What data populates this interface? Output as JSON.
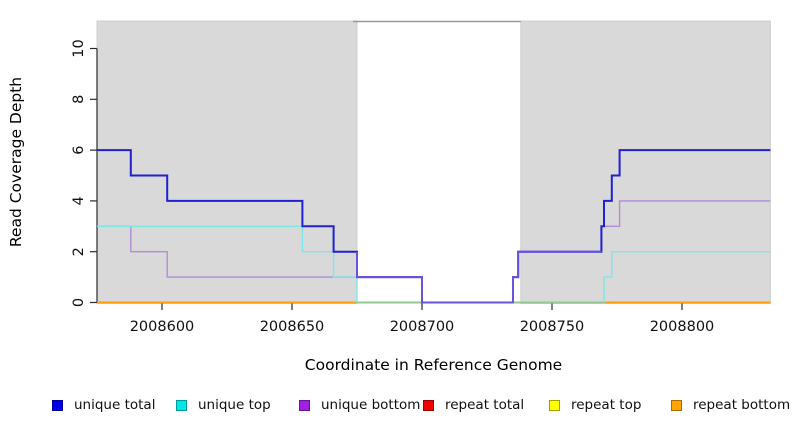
{
  "x_axis": {
    "label": "Coordinate in Reference Genome",
    "tick_values": [
      2008600,
      2008650,
      2008700,
      2008750,
      2008800
    ],
    "tick_labels": [
      "2008600",
      "2008650",
      "2008700",
      "2008750",
      "2008800"
    ]
  },
  "y_axis": {
    "label": "Read Coverage Depth",
    "tick_values": [
      0,
      2,
      4,
      6,
      8,
      10
    ],
    "tick_labels": [
      "0",
      "2",
      "4",
      "6",
      "8",
      "10"
    ]
  },
  "chart_data": {
    "type": "line",
    "style": "step",
    "title": "",
    "xlabel": "Coordinate in Reference Genome",
    "ylabel": "Read Coverage Depth",
    "xlim": [
      2008575,
      2008834
    ],
    "ylim": [
      0,
      11
    ],
    "grid": false,
    "legend_position": "bottom",
    "shaded_regions": {
      "fill": "#d9d9d9",
      "border": "#c6c6c6",
      "intervals": [
        [
          2008575,
          2008675
        ],
        [
          2008738,
          2008834
        ]
      ],
      "gap": [
        2008675,
        2008738
      ],
      "gap_top_line_color": "#9a9a9a"
    },
    "series": [
      {
        "name": "unique total",
        "color": "#2020d0",
        "line_width": 2,
        "steps": [
          [
            2008575,
            6
          ],
          [
            2008588,
            5
          ],
          [
            2008602,
            4
          ],
          [
            2008654,
            3
          ],
          [
            2008666,
            2
          ],
          [
            2008675,
            1
          ],
          [
            2008700,
            0
          ],
          [
            2008735,
            1
          ],
          [
            2008737,
            2
          ],
          [
            2008769,
            3
          ],
          [
            2008770,
            4
          ],
          [
            2008773,
            5
          ],
          [
            2008776,
            6
          ],
          [
            2008834,
            6
          ]
        ]
      },
      {
        "name": "unique top",
        "color": "#7de8e8",
        "line_width": 1.4,
        "steps": [
          [
            2008575,
            3
          ],
          [
            2008654,
            2
          ],
          [
            2008666,
            1
          ],
          [
            2008675,
            0
          ],
          [
            2008770,
            1
          ],
          [
            2008773,
            2
          ],
          [
            2008834,
            2
          ]
        ]
      },
      {
        "name": "unique bottom",
        "color": "#b28cd6",
        "line_width": 1.4,
        "steps": [
          [
            2008575,
            3
          ],
          [
            2008588,
            2
          ],
          [
            2008602,
            1
          ],
          [
            2008700,
            0
          ],
          [
            2008735,
            1
          ],
          [
            2008737,
            2
          ],
          [
            2008769,
            3
          ],
          [
            2008776,
            4
          ],
          [
            2008834,
            4
          ]
        ]
      },
      {
        "name": "repeat total",
        "color": "#e01010",
        "line_width": 1.4,
        "steps": [
          [
            2008575,
            0
          ],
          [
            2008834,
            0
          ]
        ]
      },
      {
        "name": "repeat top",
        "color": "#f5f500",
        "line_width": 1.4,
        "steps": [
          [
            2008575,
            0
          ],
          [
            2008834,
            0
          ]
        ]
      },
      {
        "name": "repeat bottom",
        "color": "#ff9d0a",
        "line_width": 2,
        "steps": [
          [
            2008575,
            0
          ],
          [
            2008834,
            0
          ]
        ]
      }
    ],
    "overlap_blends": [
      {
        "name": "unique-top-over-repeat-bottom-zero",
        "color": "#8fc98f",
        "line_width": 1.7,
        "steps": [
          [
            2008675,
            0
          ],
          [
            2008770,
            0
          ]
        ]
      },
      {
        "name": "unique-total-over-unique-bottom",
        "color": "#6a52dc",
        "line_width": 2,
        "steps": [
          [
            2008675,
            2
          ],
          [
            2008675,
            1
          ],
          [
            2008700,
            0
          ],
          [
            2008735,
            1
          ],
          [
            2008737,
            2
          ],
          [
            2008769,
            2
          ]
        ]
      }
    ]
  },
  "legend": {
    "items": [
      {
        "label": "unique total",
        "fill": "#0000ee",
        "border": "#00009a"
      },
      {
        "label": "unique top",
        "fill": "#00e6e6",
        "border": "#009a9a"
      },
      {
        "label": "unique bottom",
        "fill": "#a020e0",
        "border": "#6a12a0"
      },
      {
        "label": "repeat total",
        "fill": "#ee0000",
        "border": "#9a0000"
      },
      {
        "label": "repeat top",
        "fill": "#ffff00",
        "border": "#a0a000"
      },
      {
        "label": "repeat bottom",
        "fill": "#ffa500",
        "border": "#b06800"
      }
    ]
  }
}
